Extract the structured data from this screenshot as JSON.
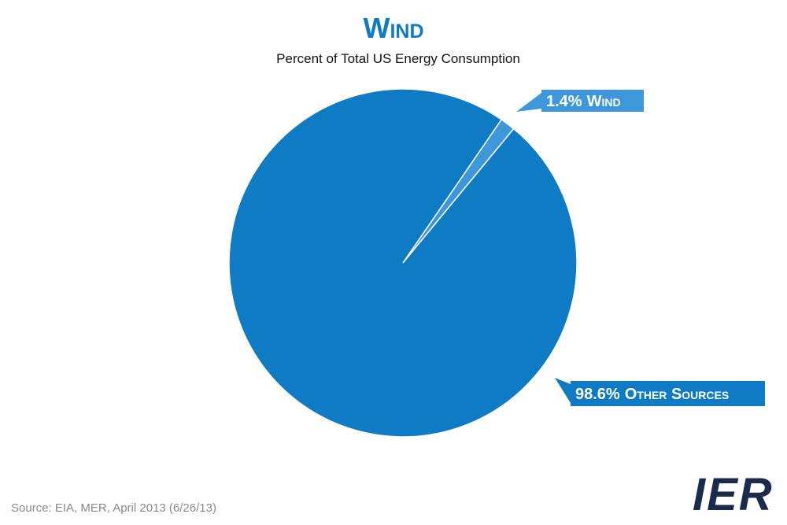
{
  "chart_data": {
    "type": "pie",
    "title": "Wind",
    "subtitle": "Percent of Total US Energy Consumption",
    "categories": [
      "Wind",
      "Other Sources"
    ],
    "values": [
      1.4,
      98.6
    ],
    "value_labels": [
      "1.4%",
      "98.6%"
    ],
    "colors": [
      "#3d97d8",
      "#0e7bc4"
    ]
  },
  "source": "Source: EIA, MER, April 2013 (6/26/13)",
  "logo": "IER"
}
